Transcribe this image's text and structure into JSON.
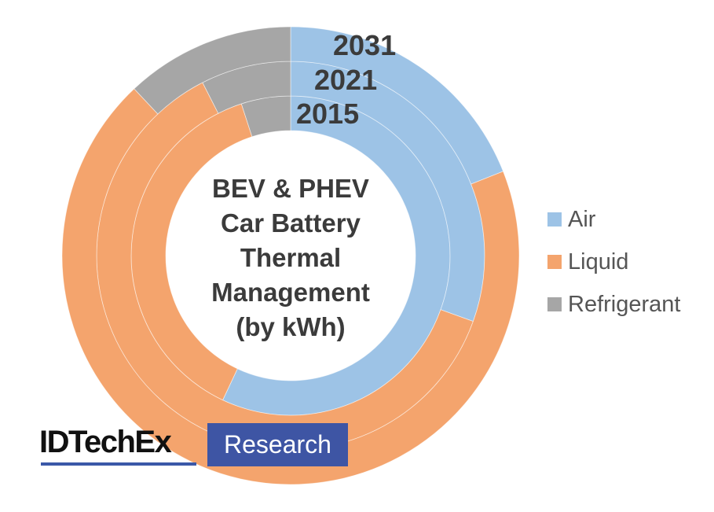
{
  "chart_data": {
    "type": "pie",
    "subtype": "multi-ring donut",
    "title": "BEV & PHEV Car Battery Thermal Management (by kWh)",
    "title_lines": [
      "BEV & PHEV",
      "Car Battery",
      "Thermal",
      "Management",
      "(by kWh)"
    ],
    "categories": [
      "Air",
      "Liquid",
      "Refrigerant"
    ],
    "colors": {
      "Air": "#9dc3e6",
      "Liquid": "#f4a46d",
      "Refrigerant": "#a6a6a6"
    },
    "rings": [
      {
        "name": "2015",
        "position": "inner",
        "values": [
          57,
          38,
          5
        ]
      },
      {
        "name": "2021",
        "position": "middle",
        "values": [
          30.5,
          62,
          7.5
        ]
      },
      {
        "name": "2031",
        "position": "outer",
        "values": [
          19,
          69,
          12
        ]
      }
    ],
    "units": "% share of kWh (estimated from angles)",
    "legend_position": "right"
  },
  "year_labels": [
    "2031",
    "2021",
    "2015"
  ],
  "legend": [
    {
      "label": "Air",
      "color": "#9dc3e6"
    },
    {
      "label": "Liquid",
      "color": "#f4a46d"
    },
    {
      "label": "Refrigerant",
      "color": "#a6a6a6"
    }
  ],
  "brand": {
    "name": "IDTechEx",
    "tag": "Research"
  }
}
